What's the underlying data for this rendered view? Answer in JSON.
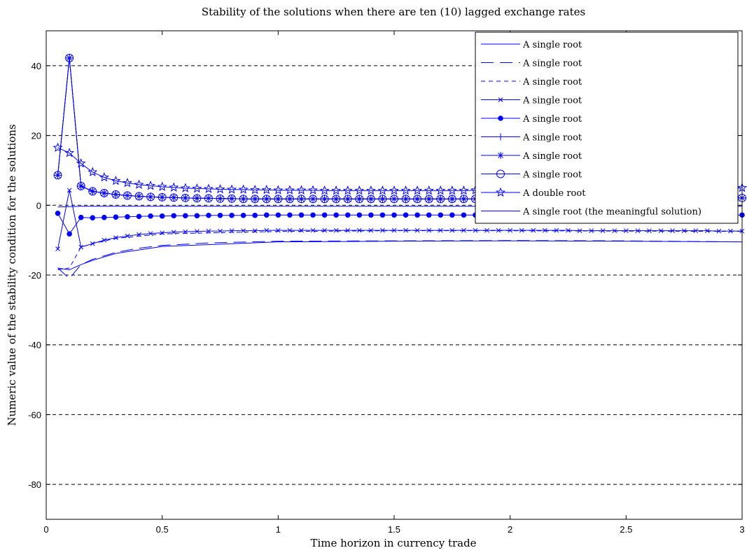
{
  "chart_data": {
    "type": "line",
    "title": "Stability of the solutions when there are ten (10) lagged exchange rates",
    "xlabel": "Time horizon in currency trade",
    "ylabel": "Numeric value of the stability condition for the solutions",
    "xlim": [
      0,
      3
    ],
    "ylim": [
      -90,
      50
    ],
    "xticks": [
      "0",
      "0.5",
      "1",
      "1.5",
      "2",
      "2.5",
      "3"
    ],
    "yticks": [
      "-80",
      "-60",
      "-40",
      "-20",
      "0",
      "20",
      "40"
    ],
    "grid": "horizontal dashed",
    "legend_position": "top-right",
    "color": "#0000ff",
    "series": [
      {
        "name": "A single root",
        "line": "solid",
        "marker": "none",
        "x": [
          0.05,
          0.1,
          0.15,
          0.2,
          0.3,
          0.5,
          1.0,
          1.5,
          2.0,
          2.5,
          3.0
        ],
        "y": [
          -0.5,
          -0.4,
          -0.3,
          -0.3,
          -0.3,
          -0.3,
          -0.3,
          -0.3,
          -0.3,
          -0.3,
          -0.3
        ]
      },
      {
        "name": "A single root",
        "line": "dashed-long",
        "marker": "none",
        "x": [
          0.05,
          0.1,
          0.15,
          0.2,
          0.3,
          0.4,
          0.5,
          0.7,
          1.0,
          1.5,
          2.0,
          2.5,
          3.0
        ],
        "y": [
          -18,
          -21,
          -17,
          -15.5,
          -13.5,
          -12.3,
          -11.5,
          -10.8,
          -10.3,
          -10.2,
          -10.1,
          -10.2,
          -10.5
        ]
      },
      {
        "name": "A single root",
        "line": "dashed-short",
        "marker": "none",
        "x": [
          0.05,
          0.1,
          0.15,
          0.2,
          0.3,
          0.5,
          1.0,
          1.5,
          2.0,
          2.5,
          3.0
        ],
        "y": [
          -18.5,
          -18,
          -12,
          -11,
          -9.5,
          -8.2,
          -7.5,
          -7.3,
          -7.3,
          -7.4,
          -7.5
        ]
      },
      {
        "name": "A single root",
        "line": "solid",
        "marker": "x",
        "x": [
          0.05,
          0.1,
          0.15,
          0.2,
          0.25,
          0.3,
          0.35,
          0.4,
          0.45,
          0.5,
          0.55,
          0.6,
          0.65,
          0.7,
          0.75,
          0.8,
          0.85,
          0.9,
          0.95,
          1.0,
          1.05,
          1.1,
          1.15,
          1.2,
          1.25,
          1.3,
          1.35,
          1.4,
          1.45,
          1.5,
          1.55,
          1.6,
          1.65,
          1.7,
          1.75,
          1.8,
          1.85,
          1.9,
          1.95,
          2.0,
          2.05,
          2.1,
          2.15,
          2.2,
          2.25,
          2.3,
          2.35,
          2.4,
          2.45,
          2.5,
          2.55,
          2.6,
          2.65,
          2.7,
          2.75,
          2.8,
          2.85,
          2.9,
          2.95,
          3.0
        ],
        "y": [
          -12.5,
          4.3,
          -12,
          -11,
          -10,
          -9.3,
          -8.8,
          -8.4,
          -8.1,
          -7.9,
          -7.7,
          -7.6,
          -7.5,
          -7.4,
          -7.4,
          -7.3,
          -7.3,
          -7.3,
          -7.2,
          -7.2,
          -7.2,
          -7.2,
          -7.2,
          -7.2,
          -7.2,
          -7.2,
          -7.2,
          -7.2,
          -7.2,
          -7.2,
          -7.2,
          -7.2,
          -7.2,
          -7.2,
          -7.2,
          -7.2,
          -7.2,
          -7.2,
          -7.2,
          -7.2,
          -7.2,
          -7.2,
          -7.2,
          -7.2,
          -7.2,
          -7.3,
          -7.3,
          -7.3,
          -7.3,
          -7.3,
          -7.3,
          -7.3,
          -7.3,
          -7.3,
          -7.3,
          -7.3,
          -7.3,
          -7.4,
          -7.4,
          -7.4
        ]
      },
      {
        "name": "A single root",
        "line": "solid",
        "marker": "dot",
        "x": [
          0.05,
          0.1,
          0.15,
          0.2,
          0.25,
          0.3,
          0.35,
          0.4,
          0.45,
          0.5,
          0.55,
          0.6,
          0.65,
          0.7,
          0.75,
          0.8,
          0.85,
          0.9,
          0.95,
          1.0,
          1.05,
          1.1,
          1.15,
          1.2,
          1.25,
          1.3,
          1.35,
          1.4,
          1.45,
          1.5,
          1.55,
          1.6,
          1.65,
          1.7,
          1.75,
          1.8,
          1.85,
          1.9,
          1.95,
          2.0,
          2.05,
          2.1,
          2.15,
          2.2,
          2.25,
          2.3,
          2.35,
          2.4,
          2.45,
          2.5,
          2.55,
          2.6,
          2.65,
          2.7,
          2.75,
          2.8,
          2.85,
          2.9,
          2.95,
          3.0
        ],
        "y": [
          -2.3,
          -8.2,
          -3.5,
          -3.6,
          -3.5,
          -3.4,
          -3.3,
          -3.2,
          -3.1,
          -3.1,
          -3.0,
          -3.0,
          -3.0,
          -2.9,
          -2.9,
          -2.9,
          -2.9,
          -2.9,
          -2.8,
          -2.8,
          -2.8,
          -2.8,
          -2.8,
          -2.8,
          -2.8,
          -2.8,
          -2.8,
          -2.8,
          -2.8,
          -2.8,
          -2.8,
          -2.8,
          -2.8,
          -2.8,
          -2.8,
          -2.8,
          -2.8,
          -2.8,
          -2.8,
          -2.8,
          -2.8,
          -2.8,
          -2.8,
          -2.8,
          -2.8,
          -2.8,
          -2.8,
          -2.8,
          -2.8,
          -2.8,
          -2.8,
          -2.8,
          -2.8,
          -2.8,
          -2.8,
          -2.8,
          -2.8,
          -2.8,
          -2.8,
          -2.8
        ]
      },
      {
        "name": "A single root",
        "line": "solid",
        "marker": "plus",
        "x": [
          0.05,
          0.1,
          0.15,
          0.2,
          0.25,
          0.3,
          0.35,
          0.4,
          0.45,
          0.5,
          0.55,
          0.6,
          0.65,
          0.7,
          0.75,
          0.8,
          0.85,
          0.9,
          0.95,
          1.0,
          1.05,
          1.1,
          1.15,
          1.2,
          1.25,
          1.3,
          1.35,
          1.4,
          1.45,
          1.5,
          1.55,
          1.6,
          1.65,
          1.7,
          1.75,
          1.8,
          1.85,
          1.9,
          1.95,
          2.0,
          2.05,
          2.1,
          2.15,
          2.2,
          2.25,
          2.3,
          2.35,
          2.4,
          2.45,
          2.5,
          2.55,
          2.6,
          2.65,
          2.7,
          2.75,
          2.8,
          2.85,
          2.9,
          2.95,
          3.0
        ],
        "y": [
          8.6,
          42.2,
          5.5,
          4.0,
          3.5,
          3.1,
          2.8,
          2.6,
          2.4,
          2.3,
          2.2,
          2.1,
          2.0,
          2.0,
          1.9,
          1.9,
          1.8,
          1.8,
          1.8,
          1.8,
          1.8,
          1.8,
          1.8,
          1.8,
          1.8,
          1.8,
          1.8,
          1.8,
          1.8,
          1.8,
          1.8,
          1.8,
          1.8,
          1.8,
          1.8,
          1.8,
          1.8,
          1.8,
          1.8,
          1.8,
          1.8,
          1.8,
          1.8,
          1.8,
          1.8,
          1.9,
          1.9,
          1.9,
          1.9,
          1.9,
          1.9,
          1.9,
          2.0,
          2.0,
          2.0,
          2.0,
          2.0,
          2.1,
          2.1,
          2.1
        ]
      },
      {
        "name": "A single root",
        "line": "solid",
        "marker": "star",
        "x": [
          0.05,
          0.1,
          0.15,
          0.2,
          0.25,
          0.3,
          0.35,
          0.4,
          0.45,
          0.5,
          0.55,
          0.6,
          0.65,
          0.7,
          0.75,
          0.8,
          0.85,
          0.9,
          0.95,
          1.0,
          1.05,
          1.1,
          1.15,
          1.2,
          1.25,
          1.3,
          1.35,
          1.4,
          1.45,
          1.5,
          1.55,
          1.6,
          1.65,
          1.7,
          1.75,
          1.8,
          1.85,
          1.9,
          1.95,
          2.0,
          2.05,
          2.1,
          2.15,
          2.2,
          2.25,
          2.3,
          2.35,
          2.4,
          2.45,
          2.5,
          2.55,
          2.6,
          2.65,
          2.7,
          2.75,
          2.8,
          2.85,
          2.9,
          2.95,
          3.0
        ],
        "y": [
          8.6,
          42.2,
          5.5,
          4.0,
          3.5,
          3.1,
          2.8,
          2.6,
          2.4,
          2.3,
          2.2,
          2.1,
          2.0,
          2.0,
          1.9,
          1.9,
          1.8,
          1.8,
          1.8,
          1.8,
          1.8,
          1.8,
          1.8,
          1.8,
          1.8,
          1.8,
          1.8,
          1.8,
          1.8,
          1.8,
          1.8,
          1.8,
          1.8,
          1.8,
          1.8,
          1.8,
          1.8,
          1.8,
          1.8,
          1.8,
          1.8,
          1.8,
          1.8,
          1.8,
          1.8,
          1.9,
          1.9,
          1.9,
          1.9,
          1.9,
          1.9,
          1.9,
          2.0,
          2.0,
          2.0,
          2.0,
          2.0,
          2.1,
          2.1,
          2.1
        ]
      },
      {
        "name": "A single root",
        "line": "solid",
        "marker": "circle",
        "x": [
          0.05,
          0.1,
          0.15,
          0.2,
          0.25,
          0.3,
          0.35,
          0.4,
          0.45,
          0.5,
          0.55,
          0.6,
          0.65,
          0.7,
          0.75,
          0.8,
          0.85,
          0.9,
          0.95,
          1.0,
          1.05,
          1.1,
          1.15,
          1.2,
          1.25,
          1.3,
          1.35,
          1.4,
          1.45,
          1.5,
          1.55,
          1.6,
          1.65,
          1.7,
          1.75,
          1.8,
          1.85,
          1.9,
          1.95,
          2.0,
          2.05,
          2.1,
          2.15,
          2.2,
          2.25,
          2.3,
          2.35,
          2.4,
          2.45,
          2.5,
          2.55,
          2.6,
          2.65,
          2.7,
          2.75,
          2.8,
          2.85,
          2.9,
          2.95,
          3.0
        ],
        "y": [
          8.6,
          42.2,
          5.5,
          4.0,
          3.5,
          3.1,
          2.8,
          2.6,
          2.4,
          2.3,
          2.2,
          2.1,
          2.0,
          2.0,
          1.9,
          1.9,
          1.8,
          1.8,
          1.8,
          1.8,
          1.8,
          1.8,
          1.8,
          1.8,
          1.8,
          1.8,
          1.8,
          1.8,
          1.8,
          1.8,
          1.8,
          1.8,
          1.8,
          1.8,
          1.8,
          1.8,
          1.8,
          1.8,
          1.8,
          1.8,
          1.8,
          1.8,
          1.8,
          1.8,
          1.8,
          1.9,
          1.9,
          1.9,
          1.9,
          1.9,
          1.9,
          1.9,
          2.0,
          2.0,
          2.0,
          2.0,
          2.0,
          2.1,
          2.1,
          2.1
        ]
      },
      {
        "name": "A double root",
        "line": "solid",
        "marker": "pentagram",
        "x": [
          0.05,
          0.1,
          0.15,
          0.2,
          0.25,
          0.3,
          0.35,
          0.4,
          0.45,
          0.5,
          0.55,
          0.6,
          0.65,
          0.7,
          0.75,
          0.8,
          0.85,
          0.9,
          0.95,
          1.0,
          1.05,
          1.1,
          1.15,
          1.2,
          1.25,
          1.3,
          1.35,
          1.4,
          1.45,
          1.5,
          1.55,
          1.6,
          1.65,
          1.7,
          1.75,
          1.8,
          1.85,
          1.9,
          1.95,
          2.0,
          2.05,
          2.1,
          2.15,
          2.2,
          2.25,
          2.3,
          2.35,
          2.4,
          2.45,
          2.5,
          2.55,
          2.6,
          2.65,
          2.7,
          2.75,
          2.8,
          2.85,
          2.9,
          2.95,
          3.0
        ],
        "y": [
          16.5,
          15.0,
          12.0,
          9.5,
          8.0,
          7.0,
          6.4,
          5.9,
          5.6,
          5.3,
          5.1,
          4.9,
          4.8,
          4.7,
          4.6,
          4.5,
          4.5,
          4.4,
          4.4,
          4.3,
          4.3,
          4.3,
          4.3,
          4.2,
          4.2,
          4.2,
          4.2,
          4.2,
          4.2,
          4.2,
          4.2,
          4.2,
          4.2,
          4.2,
          4.2,
          4.2,
          4.3,
          4.3,
          4.3,
          4.3,
          4.3,
          4.3,
          4.3,
          4.4,
          4.4,
          4.4,
          4.4,
          4.4,
          4.5,
          4.5,
          4.5,
          4.5,
          4.6,
          4.6,
          4.6,
          4.7,
          4.7,
          4.8,
          4.9,
          5.0
        ]
      },
      {
        "name": "A single root (the meaningful solution)",
        "line": "solid",
        "marker": "none",
        "x": [
          0.05,
          0.1,
          0.15,
          0.2,
          0.3,
          0.5,
          1.0,
          1.5,
          2.0,
          2.5,
          3.0
        ],
        "y": [
          -18,
          -18.5,
          -17,
          -15.8,
          -13.8,
          -11.8,
          -10.5,
          -10.3,
          -10.2,
          -10.3,
          -10.5
        ]
      }
    ]
  }
}
